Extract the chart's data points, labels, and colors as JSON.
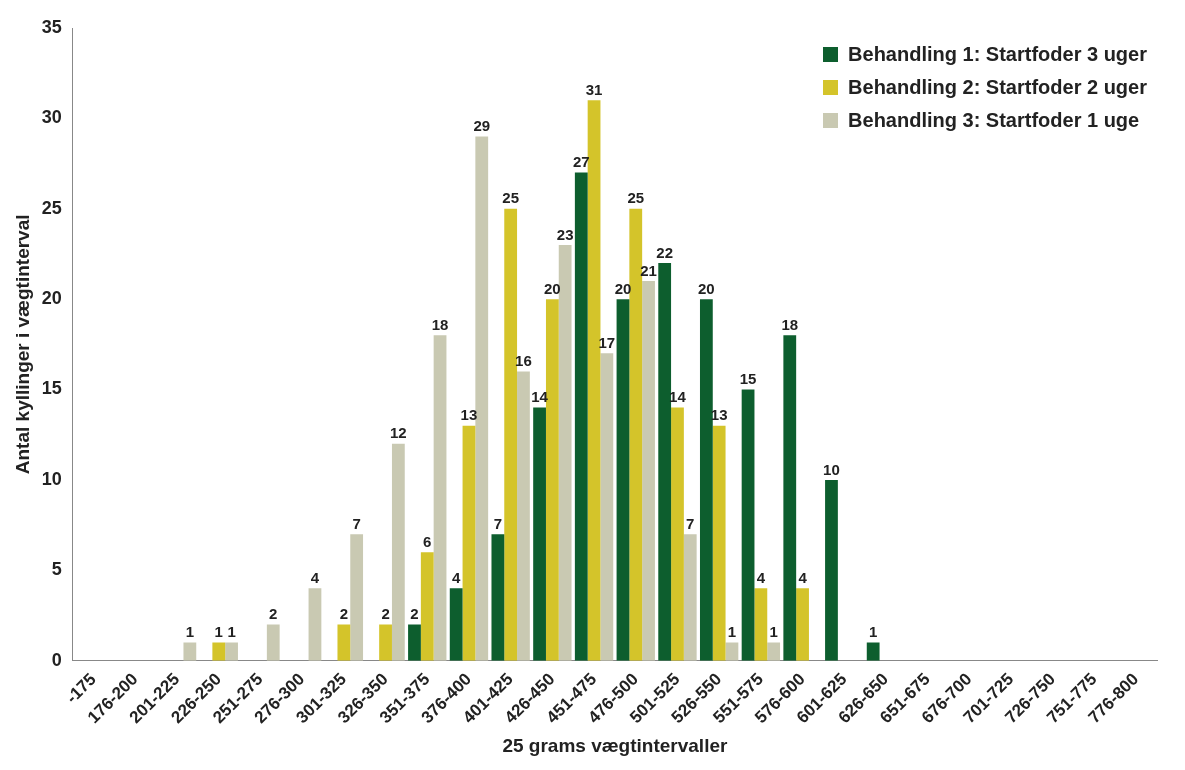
{
  "chart_data": {
    "type": "bar",
    "xlabel": "25 grams vægtintervaller",
    "ylabel": "Antal kyllinger i vægtinterval",
    "categories": [
      "-175",
      "176-200",
      "201-225",
      "226-250",
      "251-275",
      "276-300",
      "301-325",
      "326-350",
      "351-375",
      "376-400",
      "401-425",
      "426-450",
      "451-475",
      "476-500",
      "501-525",
      "526-550",
      "551-575",
      "576-600",
      "601-625",
      "626-650",
      "651-675",
      "676-700",
      "701-725",
      "726-750",
      "751-775",
      "776-800"
    ],
    "series": [
      {
        "name": "Behandling 1: Startfoder 3 uger",
        "color": "#0d5e2e",
        "values": [
          null,
          null,
          null,
          null,
          null,
          null,
          null,
          null,
          2,
          4,
          7,
          14,
          27,
          20,
          22,
          20,
          15,
          18,
          10,
          1,
          null,
          null,
          null,
          null,
          null,
          null
        ]
      },
      {
        "name": "Behandling 2: Startfoder 2 uger",
        "color": "#d4c42a",
        "values": [
          null,
          null,
          null,
          1,
          null,
          null,
          2,
          2,
          6,
          13,
          25,
          20,
          31,
          25,
          14,
          13,
          4,
          4,
          null,
          null,
          null,
          null,
          null,
          null,
          null,
          null
        ]
      },
      {
        "name": "Behandling 3: Startfoder 1 uge",
        "color": "#c9c9b2",
        "values": [
          null,
          null,
          1,
          1,
          2,
          4,
          7,
          12,
          18,
          29,
          16,
          23,
          17,
          21,
          7,
          1,
          1,
          null,
          null,
          null,
          null,
          null,
          null,
          null,
          null,
          null
        ]
      }
    ],
    "ylim": [
      0,
      35
    ],
    "yticks": [
      0,
      5,
      10,
      15,
      20,
      25,
      30,
      35
    ],
    "grid": false,
    "legend": "top right",
    "data_labels": true
  }
}
